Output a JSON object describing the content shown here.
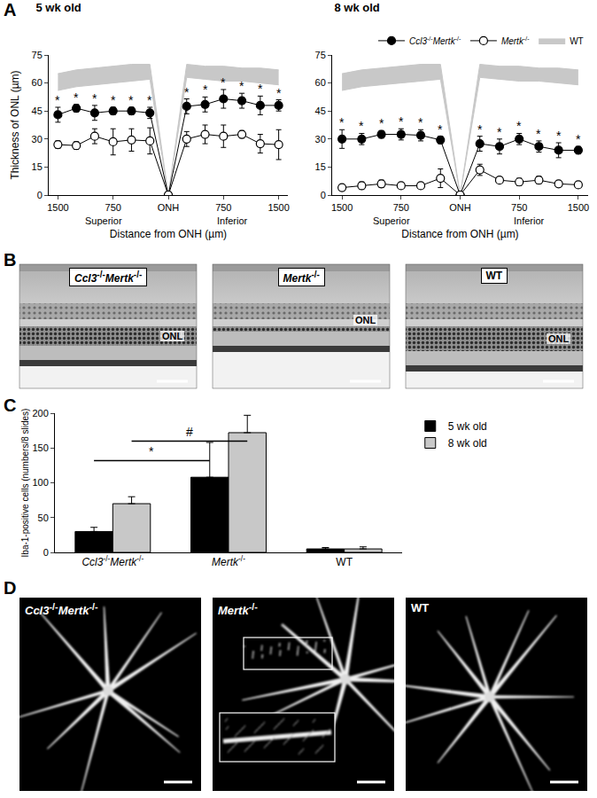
{
  "panel_labels": [
    "A",
    "B",
    "C",
    "D"
  ],
  "chart_data": [
    {
      "type": "line",
      "title": "5 wk old",
      "x_label": "Distance from ONH (µm)",
      "y_label": "Thickness of ONL (µm)",
      "categories": [
        "1500",
        null,
        null,
        "750",
        null,
        null,
        "ONH",
        null,
        null,
        "750",
        null,
        null,
        "1500"
      ],
      "region_labels": [
        "Superior",
        "Inferior"
      ],
      "ylim": [
        0,
        75
      ],
      "yticks": [
        0,
        15,
        30,
        45,
        60,
        75
      ],
      "grid": false,
      "series": [
        {
          "name": "Ccl3-/-Mertk-/-",
          "color": "#000000",
          "marker": "filled circle",
          "line_style": "solid",
          "values": [
            43,
            46.5,
            44,
            45,
            45,
            44,
            0,
            47.5,
            48.5,
            51.5,
            50.5,
            48,
            48
          ],
          "errors": [
            4,
            2,
            4,
            2,
            2,
            3,
            0,
            4,
            4,
            5,
            4,
            5,
            3
          ]
        },
        {
          "name": "Mertk-/-",
          "color": "#000000",
          "marker": "open circle",
          "line_style": "solid",
          "values": [
            27,
            26.5,
            31.5,
            28.5,
            29.5,
            29,
            0,
            30,
            32.5,
            31.5,
            32.5,
            27.5,
            27
          ],
          "errors": [
            2,
            2,
            4,
            7,
            6,
            7,
            0,
            4,
            5,
            6,
            2,
            5,
            8
          ]
        },
        {
          "name": "WT",
          "type": "band",
          "color": "#c8c8c8",
          "lower": [
            56,
            58,
            59,
            60,
            61,
            62,
            0,
            63,
            62,
            61,
            61,
            60,
            59
          ],
          "upper": [
            65,
            67,
            68,
            69,
            70,
            70,
            0,
            70,
            69,
            69,
            68,
            68,
            67
          ]
        }
      ],
      "significance": {
        "label": "*",
        "series": "Ccl3-/-Mertk-/-",
        "positions": [
          0,
          1,
          2,
          3,
          4,
          5,
          7,
          8,
          9,
          10,
          11,
          12
        ]
      }
    },
    {
      "type": "line",
      "title": "8 wk old",
      "x_label": "Distance from ONH (µm)",
      "categories": [
        "1500",
        null,
        null,
        "750",
        null,
        null,
        "ONH",
        null,
        null,
        "750",
        null,
        null,
        "1500"
      ],
      "region_labels": [
        "Superior",
        "Inferior"
      ],
      "ylim": [
        0,
        75
      ],
      "yticks": [
        0,
        15,
        30,
        45,
        60,
        75
      ],
      "grid": false,
      "legend": "top right",
      "series": [
        {
          "name": "Ccl3-/-Mertk-/-",
          "color": "#000000",
          "marker": "filled circle",
          "line_style": "solid",
          "values": [
            30,
            30,
            32.5,
            32.5,
            32,
            29.5,
            0,
            27.5,
            26,
            30,
            26,
            24,
            24
          ],
          "errors": [
            5,
            3,
            2,
            3,
            3,
            2,
            0,
            4,
            4,
            3,
            3,
            4,
            2
          ]
        },
        {
          "name": "Mertk-/-",
          "color": "#000000",
          "marker": "open circle",
          "line_style": "solid",
          "values": [
            4,
            5,
            6,
            5,
            5,
            9,
            0,
            13.5,
            8,
            7,
            8,
            6,
            5.5
          ],
          "errors": [
            1,
            2,
            2,
            1,
            1,
            5,
            0,
            3,
            1,
            2,
            2,
            1,
            1
          ]
        },
        {
          "name": "WT",
          "type": "band",
          "color": "#c8c8c8",
          "lower": [
            56,
            58,
            59,
            60,
            61,
            62,
            0,
            63,
            62,
            61,
            61,
            60,
            59
          ],
          "upper": [
            65,
            67,
            68,
            69,
            70,
            70,
            0,
            70,
            69,
            69,
            68,
            68,
            67
          ]
        }
      ],
      "significance": {
        "label": "*",
        "series": "Ccl3-/-Mertk-/-",
        "positions": [
          0,
          1,
          2,
          3,
          4,
          5,
          7,
          8,
          9,
          10,
          11,
          12
        ]
      }
    },
    {
      "type": "bar",
      "y_label": "Iba-1-positive cells (numbers/8 slides)",
      "categories": [
        "Ccl3-/-Mertk-/-",
        "Mertk-/-",
        "WT"
      ],
      "ylim": [
        0,
        200
      ],
      "yticks": [
        0,
        50,
        100,
        150,
        200
      ],
      "grid": false,
      "legend": "top right",
      "series": [
        {
          "name": "5 wk old",
          "color": "#000000",
          "values": [
            30,
            108,
            5
          ],
          "errors": [
            6,
            50,
            2
          ]
        },
        {
          "name": "8 wk old",
          "color": "#c8c8c8",
          "values": [
            70,
            172,
            5
          ],
          "errors": [
            10,
            25,
            3
          ]
        }
      ],
      "comparisons": [
        {
          "label": "*",
          "series": "5 wk old",
          "categories": [
            "Ccl3-/-Mertk-/-",
            "Mertk-/-"
          ]
        },
        {
          "label": "#",
          "series": "8 wk old",
          "categories": [
            "Ccl3-/-Mertk-/-",
            "Mertk-/-"
          ]
        }
      ]
    }
  ],
  "images": {
    "B": {
      "labels": [
        "Ccl3-/-Mertk-/-",
        "Mertk-/-",
        "WT"
      ],
      "layer_label": "ONL"
    },
    "D": {
      "labels": [
        "Ccl3-/-Mertk-/-",
        "Mertk-/-",
        "WT"
      ]
    }
  }
}
